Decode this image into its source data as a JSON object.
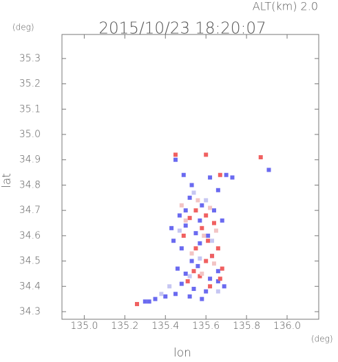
{
  "chart_data": {
    "type": "scatter",
    "title": "2015/10/23 18:20:07",
    "subtitle": "ALT(km) 2.0",
    "x_label": "lon",
    "y_label": "lat",
    "x_unit": "(deg)",
    "y_unit": "(deg)",
    "xlim": [
      134.89,
      136.156
    ],
    "ylim": [
      34.27,
      35.395
    ],
    "xticks": [
      {
        "value": 135,
        "label": "135.0"
      },
      135.2,
      135.4,
      135.6,
      135.8,
      {
        "value": 136,
        "label": "136.0"
      }
    ],
    "yticks": [
      34.3,
      34.4,
      34.5,
      34.6,
      34.7,
      34.8,
      34.9,
      {
        "value": 35,
        "label": "35.0"
      },
      35.1,
      35.2,
      35.3
    ],
    "series": [
      {
        "color": "#6a6af0",
        "x": [
          135.45,
          135.49,
          135.53,
          135.62,
          135.66,
          135.7,
          135.52,
          135.58,
          135.64,
          135.47,
          135.5,
          135.55,
          135.61,
          135.68,
          135.44,
          135.48,
          135.57,
          135.63,
          135.53,
          135.46,
          135.5,
          135.56,
          135.62,
          135.66,
          135.48,
          135.54,
          135.6,
          135.66,
          135.69,
          135.45,
          135.52,
          135.58,
          135.4,
          135.35,
          135.32,
          135.3,
          135.43,
          135.5,
          135.57,
          135.91,
          135.73
        ],
        "y": [
          34.9,
          34.84,
          34.8,
          34.83,
          34.78,
          34.84,
          34.75,
          34.72,
          34.7,
          34.68,
          34.64,
          34.61,
          34.6,
          34.66,
          34.58,
          34.55,
          34.57,
          34.52,
          34.5,
          34.47,
          34.45,
          34.48,
          34.43,
          34.46,
          34.41,
          34.39,
          34.38,
          34.42,
          34.4,
          34.37,
          34.36,
          34.35,
          34.36,
          34.35,
          34.34,
          34.34,
          34.63,
          34.7,
          34.66,
          34.86,
          34.83
        ]
      },
      {
        "color": "#f06060",
        "x": [
          135.26,
          135.45,
          135.6,
          135.87,
          135.67,
          135.55,
          135.6,
          135.64,
          135.52,
          135.58,
          135.49,
          135.61,
          135.66,
          135.55,
          135.63,
          135.68,
          135.57,
          135.62,
          135.51,
          135.67,
          135.6,
          135.54
        ],
        "y": [
          34.33,
          34.92,
          34.92,
          34.91,
          34.84,
          34.7,
          34.68,
          34.65,
          34.67,
          34.63,
          34.6,
          34.58,
          34.55,
          34.55,
          34.52,
          34.47,
          34.44,
          34.4,
          34.42,
          34.43,
          34.5,
          34.46
        ]
      },
      {
        "color": "#f2c4c4",
        "x": [
          135.56,
          135.62,
          135.5,
          135.65,
          135.59,
          135.53,
          135.64,
          135.58,
          135.48
        ],
        "y": [
          34.74,
          34.71,
          34.66,
          34.62,
          34.6,
          34.53,
          34.49,
          34.45,
          34.72
        ]
      },
      {
        "color": "#c6c6f2",
        "x": [
          135.54,
          135.6,
          135.47,
          135.63,
          135.57,
          135.52,
          135.66,
          135.42,
          135.38
        ],
        "y": [
          34.77,
          34.74,
          34.62,
          34.58,
          34.51,
          34.44,
          34.38,
          34.4,
          34.37
        ]
      }
    ]
  }
}
